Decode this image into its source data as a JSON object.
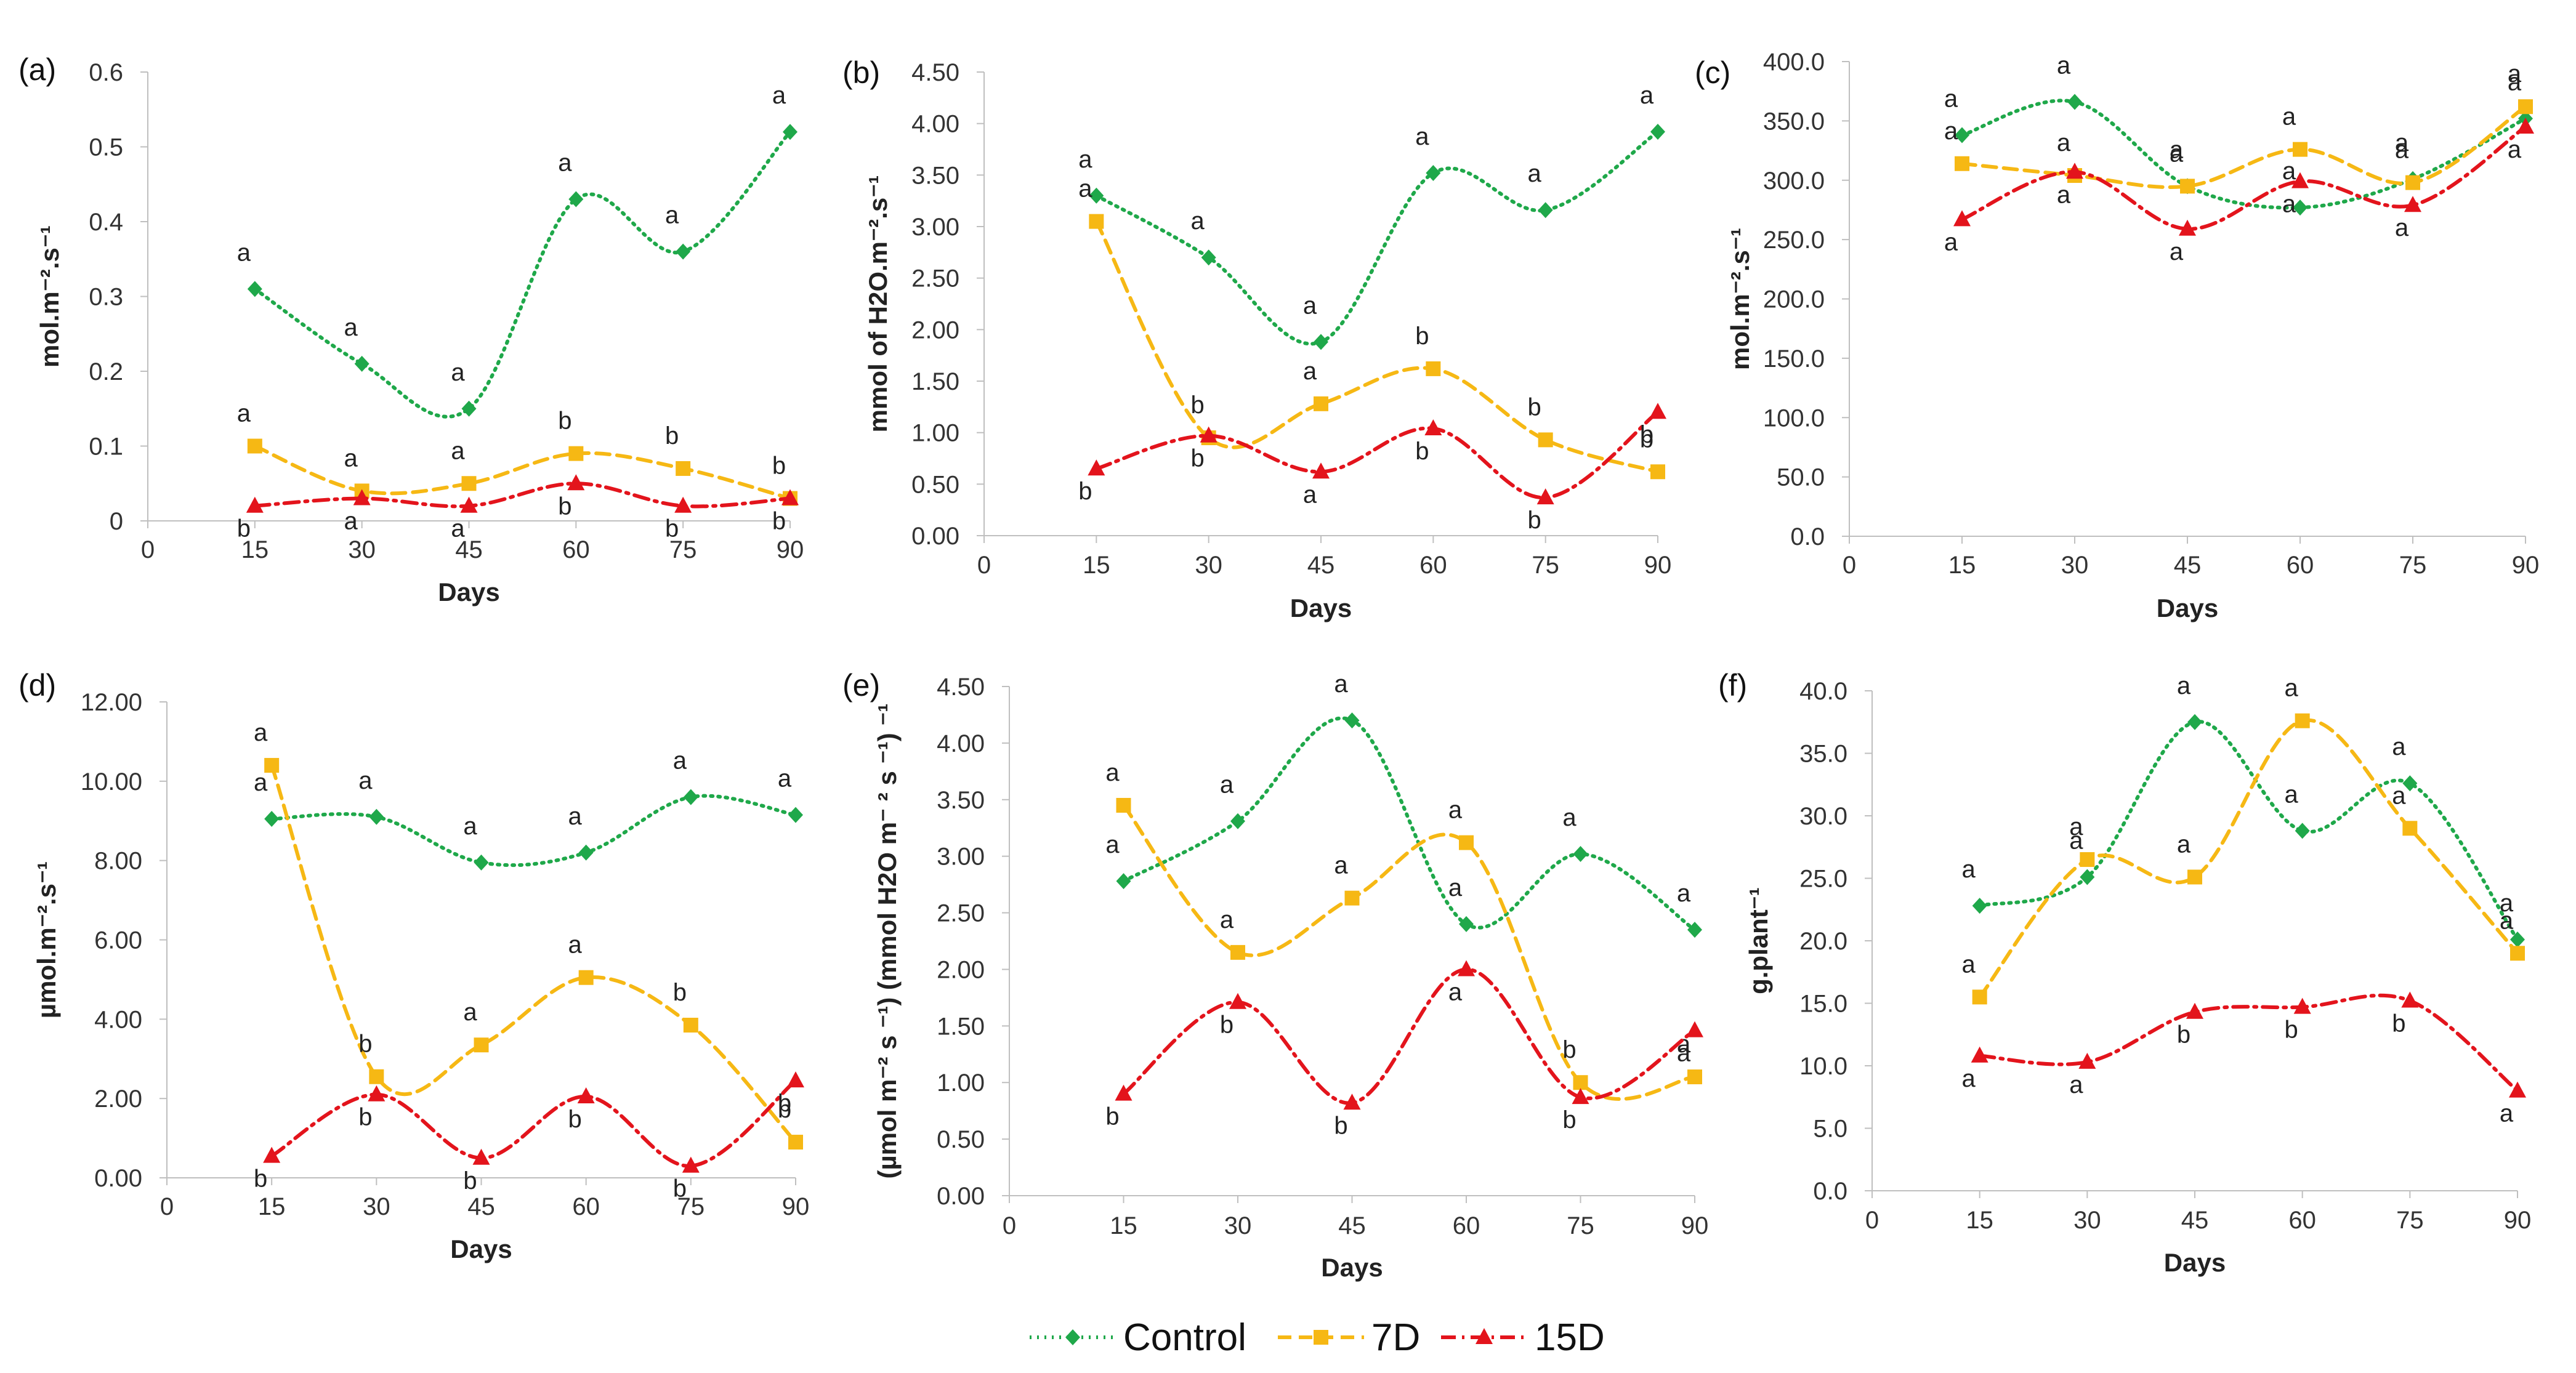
{
  "legend": [
    {
      "name": "Control",
      "color": "#1fa84a",
      "dash": "dot",
      "marker": "diamond"
    },
    {
      "name": "7D",
      "color": "#f6b814",
      "dash": "dash",
      "marker": "square"
    },
    {
      "name": "15D",
      "color": "#e3141c",
      "dash": "dashdot",
      "marker": "triangle"
    }
  ],
  "chart_data": [
    {
      "panel": "(a)",
      "type": "line",
      "xlabel": "Days",
      "ylabel": "mol.m⁻².s⁻¹",
      "x": [
        15,
        30,
        45,
        60,
        75,
        90
      ],
      "xlim": [
        0,
        90
      ],
      "xticks": [
        "0",
        "15",
        "30",
        "45",
        "60",
        "75",
        "90"
      ],
      "ylim": [
        0,
        0.6
      ],
      "yticks": [
        "0",
        "0.1",
        "0.2",
        "0.3",
        "0.4",
        "0.5",
        "0.6"
      ],
      "series": [
        {
          "name": "Control",
          "values": [
            0.31,
            0.21,
            0.15,
            0.43,
            0.36,
            0.52
          ],
          "labels": [
            "a",
            "a",
            "a",
            "a",
            "a",
            "a"
          ]
        },
        {
          "name": "7D",
          "values": [
            0.1,
            0.04,
            0.05,
            0.09,
            0.07,
            0.03
          ],
          "labels": [
            "a",
            "a",
            "a",
            "b",
            "b",
            "b"
          ]
        },
        {
          "name": "15D",
          "values": [
            0.02,
            0.03,
            0.02,
            0.05,
            0.02,
            0.03
          ],
          "labels": [
            "b",
            "a",
            "a",
            "b",
            "b",
            "b"
          ]
        }
      ]
    },
    {
      "panel": "(b)",
      "type": "line",
      "xlabel": "Days",
      "ylabel": "mmol of H2O.m⁻².s⁻¹",
      "x": [
        15,
        30,
        45,
        60,
        75,
        90
      ],
      "xlim": [
        0,
        90
      ],
      "xticks": [
        "0",
        "15",
        "30",
        "45",
        "60",
        "75",
        "90"
      ],
      "ylim": [
        0,
        4.5
      ],
      "yticks": [
        "0.00",
        "0.50",
        "1.00",
        "1.50",
        "2.00",
        "2.50",
        "3.00",
        "3.50",
        "4.00",
        "4.50"
      ],
      "series": [
        {
          "name": "Control",
          "values": [
            3.3,
            2.7,
            1.88,
            3.52,
            3.16,
            3.92
          ],
          "labels": [
            "a",
            "a",
            "a",
            "a",
            "a",
            "a"
          ]
        },
        {
          "name": "7D",
          "values": [
            3.05,
            0.95,
            1.28,
            1.62,
            0.93,
            0.62
          ],
          "labels": [
            "a",
            "b",
            "a",
            "b",
            "b",
            "b"
          ]
        },
        {
          "name": "15D",
          "values": [
            0.65,
            0.97,
            0.62,
            1.04,
            0.37,
            1.2
          ],
          "labels": [
            "b",
            "b",
            "a",
            "b",
            "b",
            "b"
          ]
        }
      ]
    },
    {
      "panel": "(c)",
      "type": "line",
      "xlabel": "Days",
      "ylabel": "mol.m⁻².s⁻¹",
      "x": [
        15,
        30,
        45,
        60,
        75,
        90
      ],
      "xlim": [
        0,
        90
      ],
      "xticks": [
        "0",
        "15",
        "30",
        "45",
        "60",
        "75",
        "90"
      ],
      "ylim": [
        0,
        400
      ],
      "yticks": [
        "0.0",
        "50.0",
        "100.0",
        "150.0",
        "200.0",
        "250.0",
        "300.0",
        "350.0",
        "400.0"
      ],
      "series": [
        {
          "name": "Control",
          "values": [
            338,
            366,
            295,
            277,
            301,
            352
          ],
          "labels": [
            "a",
            "a",
            "a",
            "a",
            "a",
            "a"
          ]
        },
        {
          "name": "7D",
          "values": [
            314,
            304,
            295,
            326,
            298,
            362
          ],
          "labels": [
            "a",
            "a",
            "a",
            "a",
            "a",
            "a"
          ]
        },
        {
          "name": "15D",
          "values": [
            267,
            307,
            259,
            299,
            279,
            345
          ],
          "labels": [
            "a",
            "a",
            "a",
            "a",
            "a",
            "a"
          ]
        }
      ]
    },
    {
      "panel": "(d)",
      "type": "line",
      "xlabel": "Days",
      "ylabel": "µmol.m⁻².s⁻¹",
      "x": [
        15,
        30,
        45,
        60,
        75,
        90
      ],
      "xlim": [
        0,
        90
      ],
      "xticks": [
        "0",
        "15",
        "30",
        "45",
        "60",
        "75",
        "90"
      ],
      "ylim": [
        0,
        12
      ],
      "yticks": [
        "0.00",
        "2.00",
        "4.00",
        "6.00",
        "8.00",
        "10.00",
        "12.00"
      ],
      "series": [
        {
          "name": "Control",
          "values": [
            9.05,
            9.1,
            7.95,
            8.2,
            9.6,
            9.15
          ],
          "labels": [
            "a",
            "a",
            "a",
            "a",
            "a",
            "a"
          ]
        },
        {
          "name": "7D",
          "values": [
            10.4,
            2.55,
            3.35,
            5.05,
            3.85,
            0.9
          ],
          "labels": [
            "a",
            "b",
            "a",
            "a",
            "b",
            "b"
          ]
        },
        {
          "name": "15D",
          "values": [
            0.55,
            2.1,
            0.5,
            2.05,
            0.3,
            2.45
          ],
          "labels": [
            "b",
            "b",
            "b",
            "b",
            "b",
            "b"
          ]
        }
      ]
    },
    {
      "panel": "(e)",
      "type": "line",
      "xlabel": "Days",
      "ylabel": "(µmol m⁻² s ⁻¹) (mmol H2O m⁻ ² s ⁻¹) ⁻¹",
      "x": [
        15,
        30,
        45,
        60,
        75,
        90
      ],
      "xlim": [
        0,
        90
      ],
      "xticks": [
        "0",
        "15",
        "30",
        "45",
        "60",
        "75",
        "90"
      ],
      "ylim": [
        0,
        4.5
      ],
      "yticks": [
        "0.00",
        "0.50",
        "1.00",
        "1.50",
        "2.00",
        "2.50",
        "3.00",
        "3.50",
        "4.00",
        "4.50"
      ],
      "series": [
        {
          "name": "Control",
          "values": [
            2.78,
            3.31,
            4.2,
            2.4,
            3.02,
            2.35
          ],
          "labels": [
            "a",
            "a",
            "a",
            "a",
            "a",
            "a"
          ]
        },
        {
          "name": "7D",
          "values": [
            3.45,
            2.15,
            2.63,
            3.12,
            1.0,
            1.05
          ],
          "labels": [
            "a",
            "a",
            "a",
            "a",
            "b",
            "a"
          ]
        },
        {
          "name": "15D",
          "values": [
            0.9,
            1.71,
            0.82,
            2.0,
            0.87,
            1.46
          ],
          "labels": [
            "b",
            "b",
            "b",
            "a",
            "b",
            "a"
          ]
        }
      ]
    },
    {
      "panel": "(f)",
      "type": "line",
      "xlabel": "Days",
      "ylabel": "g.plant⁻¹",
      "x": [
        15,
        30,
        45,
        60,
        75,
        90
      ],
      "xlim": [
        0,
        90
      ],
      "xticks": [
        "0",
        "15",
        "30",
        "45",
        "60",
        "75",
        "90"
      ],
      "ylim": [
        0,
        40
      ],
      "yticks": [
        "0.0",
        "5.0",
        "10.0",
        "15.0",
        "20.0",
        "25.0",
        "30.0",
        "35.0",
        "40.0"
      ],
      "series": [
        {
          "name": "Control",
          "values": [
            22.8,
            25.1,
            37.5,
            28.8,
            32.6,
            20.1
          ],
          "labels": [
            "a",
            "a",
            "a",
            "a",
            "a",
            "a"
          ]
        },
        {
          "name": "7D",
          "values": [
            15.5,
            26.5,
            25.1,
            37.6,
            29.0,
            19.0
          ],
          "labels": [
            "a",
            "a",
            "a",
            "a",
            "a",
            "a"
          ]
        },
        {
          "name": "15D",
          "values": [
            10.8,
            10.3,
            14.3,
            14.7,
            15.2,
            8.0
          ],
          "labels": [
            "a",
            "a",
            "b",
            "b",
            "b",
            "a"
          ]
        }
      ]
    }
  ]
}
